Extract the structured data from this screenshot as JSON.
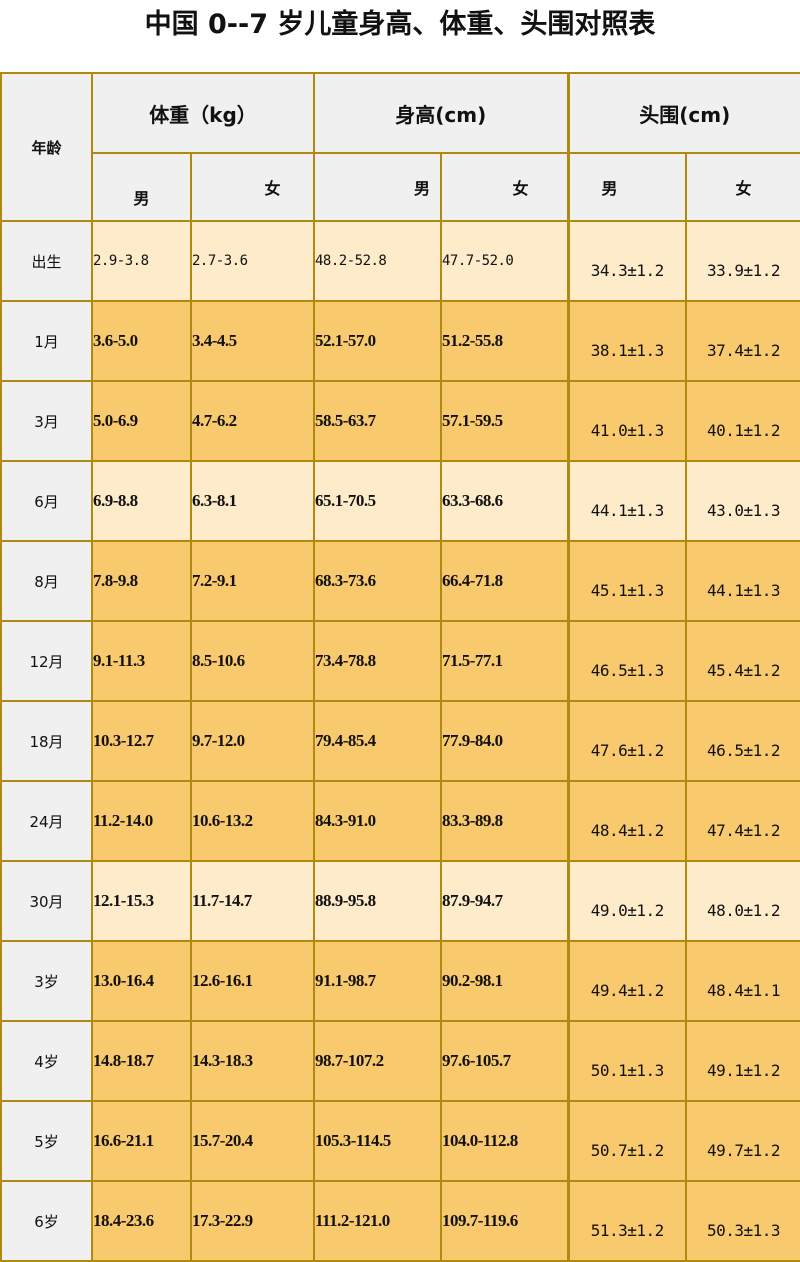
{
  "title": "中国 0--7 岁儿童身高、体重、头围对照表",
  "headers": {
    "age": "年龄",
    "weight": "体重（kg）",
    "height": "身高(cm)",
    "head": "头围(cm)",
    "male": "男",
    "female": "女"
  },
  "colors": {
    "header_bg": "#f0f0f0",
    "light_row": "#fdebc9",
    "dark_row": "#f9c96e",
    "border": "#b08a10"
  },
  "rows": [
    {
      "age": "出生",
      "shade": "light",
      "w_m": "2.9-3.8",
      "w_f": "2.7-3.6",
      "h_m": "48.2-52.8",
      "h_f": "47.7-52.0",
      "hc_m": "34.3±1.2",
      "hc_f": "33.9±1.2"
    },
    {
      "age": "1月",
      "shade": "dark",
      "w_m": "3.6-5.0",
      "w_f": "3.4-4.5",
      "h_m": "52.1-57.0",
      "h_f": "51.2-55.8",
      "hc_m": "38.1±1.3",
      "hc_f": "37.4±1.2"
    },
    {
      "age": "3月",
      "shade": "dark",
      "w_m": "5.0-6.9",
      "w_f": "4.7-6.2",
      "h_m": "58.5-63.7",
      "h_f": "57.1-59.5",
      "hc_m": "41.0±1.3",
      "hc_f": "40.1±1.2"
    },
    {
      "age": "6月",
      "shade": "light",
      "w_m": "6.9-8.8",
      "w_f": "6.3-8.1",
      "h_m": "65.1-70.5",
      "h_f": "63.3-68.6",
      "hc_m": "44.1±1.3",
      "hc_f": "43.0±1.3"
    },
    {
      "age": "8月",
      "shade": "dark",
      "w_m": "7.8-9.8",
      "w_f": "7.2-9.1",
      "h_m": "68.3-73.6",
      "h_f": "66.4-71.8",
      "hc_m": "45.1±1.3",
      "hc_f": "44.1±1.3"
    },
    {
      "age": "12月",
      "shade": "dark",
      "w_m": "9.1-11.3",
      "w_f": "8.5-10.6",
      "h_m": "73.4-78.8",
      "h_f": "71.5-77.1",
      "hc_m": "46.5±1.3",
      "hc_f": "45.4±1.2"
    },
    {
      "age": "18月",
      "shade": "dark",
      "w_m": "10.3-12.7",
      "w_f": "9.7-12.0",
      "h_m": "79.4-85.4",
      "h_f": "77.9-84.0",
      "hc_m": "47.6±1.2",
      "hc_f": "46.5±1.2"
    },
    {
      "age": "24月",
      "shade": "dark",
      "w_m": "11.2-14.0",
      "w_f": "10.6-13.2",
      "h_m": "84.3-91.0",
      "h_f": "83.3-89.8",
      "hc_m": "48.4±1.2",
      "hc_f": "47.4±1.2"
    },
    {
      "age": "30月",
      "shade": "light",
      "w_m": "12.1-15.3",
      "w_f": "11.7-14.7",
      "h_m": "88.9-95.8",
      "h_f": "87.9-94.7",
      "hc_m": "49.0±1.2",
      "hc_f": "48.0±1.2"
    },
    {
      "age": "3岁",
      "shade": "dark",
      "w_m": "13.0-16.4",
      "w_f": "12.6-16.1",
      "h_m": "91.1-98.7",
      "h_f": "90.2-98.1",
      "hc_m": "49.4±1.2",
      "hc_f": "48.4±1.1"
    },
    {
      "age": "4岁",
      "shade": "dark",
      "w_m": "14.8-18.7",
      "w_f": "14.3-18.3",
      "h_m": "98.7-107.2",
      "h_f": "97.6-105.7",
      "hc_m": "50.1±1.3",
      "hc_f": "49.1±1.2"
    },
    {
      "age": "5岁",
      "shade": "dark",
      "w_m": "16.6-21.1",
      "w_f": "15.7-20.4",
      "h_m": "105.3-114.5",
      "h_f": "104.0-112.8",
      "hc_m": "50.7±1.2",
      "hc_f": "49.7±1.2"
    },
    {
      "age": "6岁",
      "shade": "dark",
      "w_m": "18.4-23.6",
      "w_f": "17.3-22.9",
      "h_m": "111.2-121.0",
      "h_f": "109.7-119.6",
      "hc_m": "51.3±1.2",
      "hc_f": "50.3±1.3"
    }
  ]
}
